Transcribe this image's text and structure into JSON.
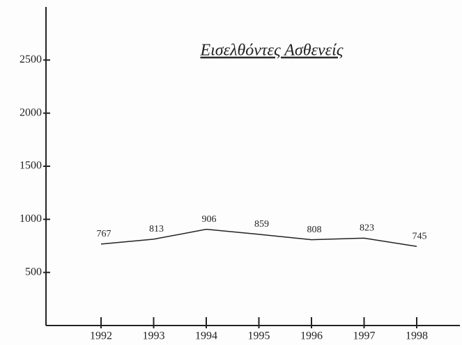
{
  "chart_data": {
    "type": "line",
    "title": "Εισελθόντες Ασθενείς",
    "categories": [
      "1992",
      "1993",
      "1994",
      "1995",
      "1996",
      "1997",
      "1998"
    ],
    "values": [
      767,
      813,
      906,
      859,
      808,
      823,
      745
    ],
    "color": "#222222",
    "ylim": [
      0,
      3000
    ],
    "yticks": [
      500,
      1000,
      1500,
      2000,
      2500
    ],
    "grid": false
  }
}
